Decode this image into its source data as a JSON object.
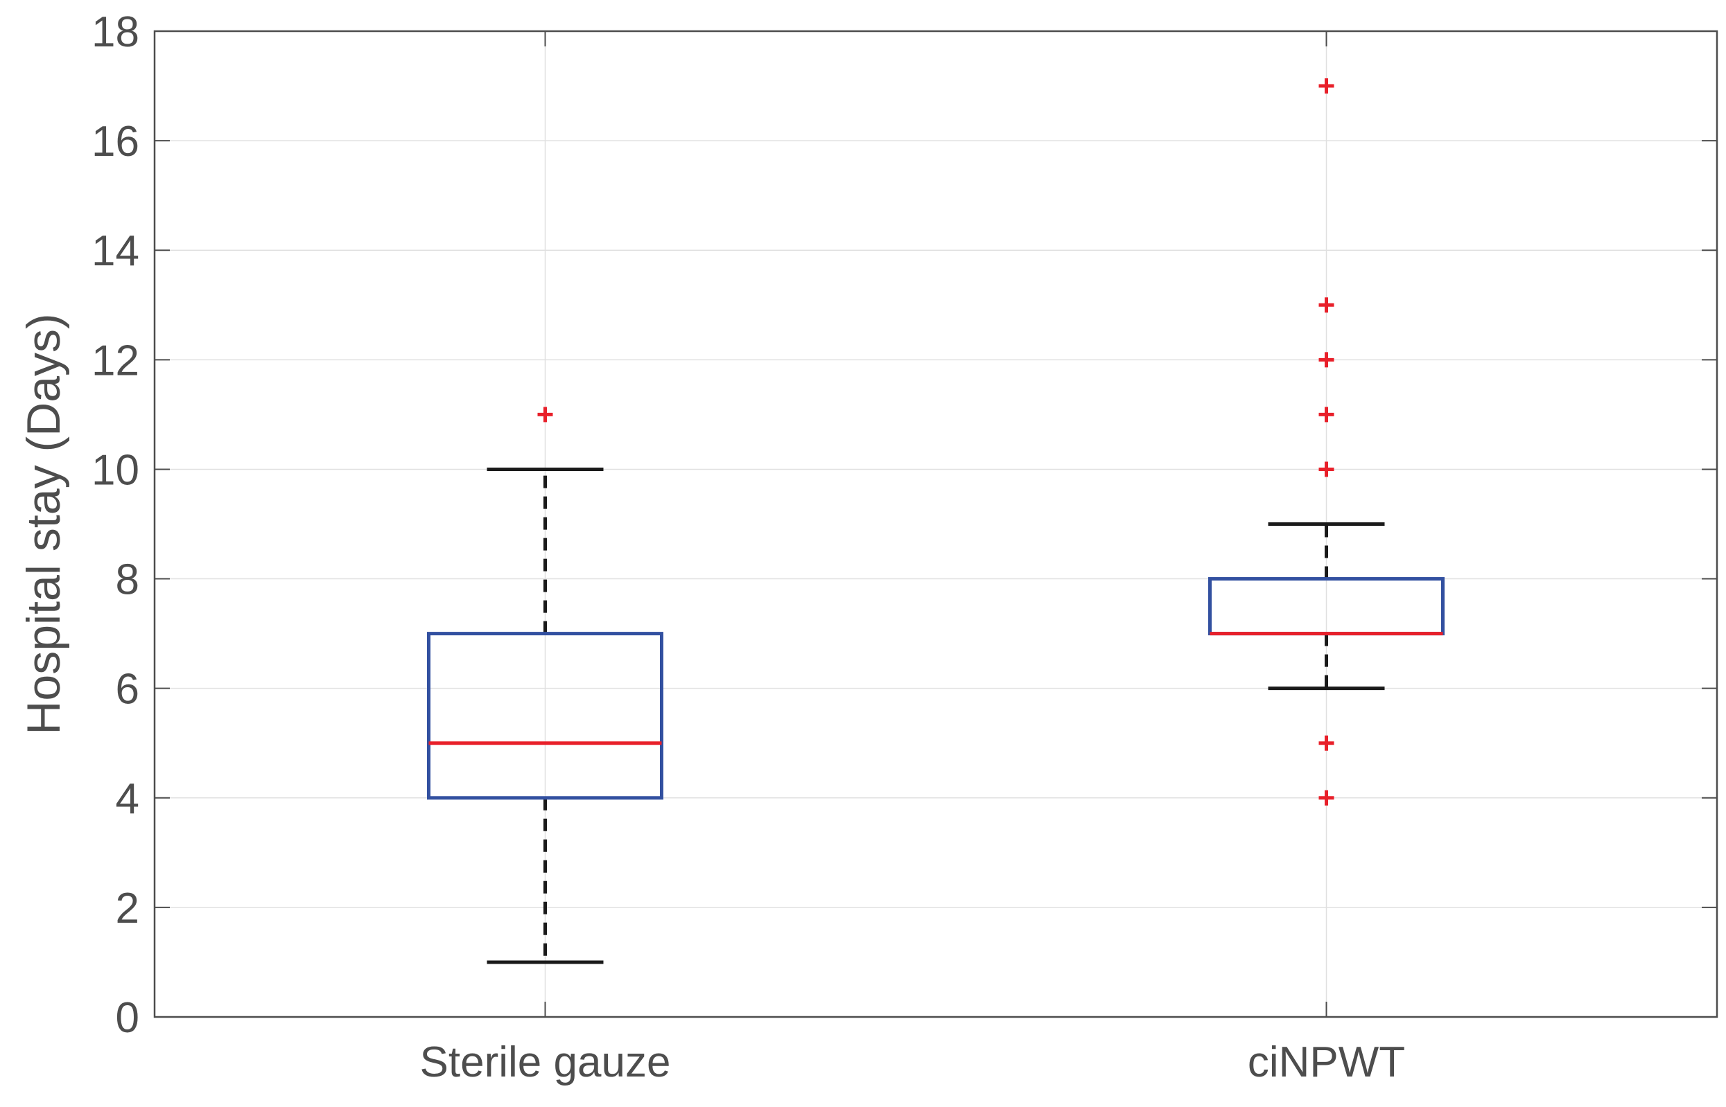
{
  "chart_data": {
    "type": "box",
    "title": "",
    "xlabel": "",
    "ylabel": "Hospital stay (Days)",
    "ylim": [
      0,
      18
    ],
    "yticks": [
      0,
      2,
      4,
      6,
      8,
      10,
      12,
      14,
      16,
      18
    ],
    "grid": true,
    "categories": [
      "Sterile gauze",
      "ciNPWT"
    ],
    "boxes": [
      {
        "name": "Sterile gauze",
        "whisker_low": 1,
        "q1": 4,
        "median": 5,
        "q3": 7,
        "whisker_high": 10,
        "outliers": [
          11
        ]
      },
      {
        "name": "ciNPWT",
        "whisker_low": 6,
        "q1": 7,
        "median": 7,
        "q3": 8,
        "whisker_high": 9,
        "outliers": [
          4,
          5,
          10,
          11,
          12,
          13,
          17
        ]
      }
    ],
    "colors": {
      "box": "#3250a0",
      "median": "#e8202a",
      "whisker": "#1a1a1a",
      "outlier": "#e8202a",
      "grid": "#e0e0e0",
      "axis": "#4d4d4d",
      "text": "#4d4d4d"
    }
  }
}
